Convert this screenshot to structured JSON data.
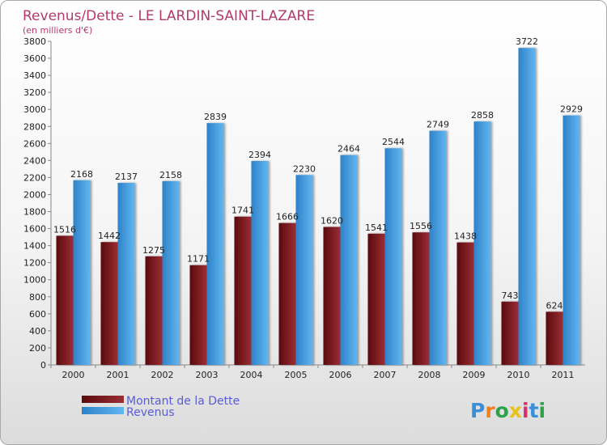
{
  "chart_data": {
    "type": "bar",
    "title": "Revenus/Dette - LE LARDIN-SAINT-LAZARE",
    "subtitle": "(en milliers d'€)",
    "categories": [
      "2000",
      "2001",
      "2002",
      "2003",
      "2004",
      "2005",
      "2006",
      "2007",
      "2008",
      "2009",
      "2010",
      "2011"
    ],
    "series": [
      {
        "name": "Montant de la Dette",
        "color": "#7a1a1e",
        "values": [
          1516,
          1442,
          1275,
          1171,
          1741,
          1666,
          1620,
          1541,
          1556,
          1438,
          743,
          624
        ],
        "labels": [
          "1516",
          "1442",
          "1275",
          "1171",
          "1741",
          "1666",
          "1620",
          "1541",
          "1556",
          "1438",
          "743",
          "624"
        ]
      },
      {
        "name": "Revenus",
        "color": "#4ea6e6",
        "values": [
          2168,
          2137,
          2158,
          2839,
          2394,
          2230,
          2464,
          2544,
          2749,
          2858,
          3722,
          2929
        ],
        "labels": [
          "2168",
          "2137",
          "2158",
          "2839",
          "2394",
          "2230",
          "2464",
          "2544",
          "2749",
          "2858",
          "3722",
          "2929"
        ]
      }
    ],
    "ylim": [
      0,
      3800
    ],
    "yticks": [
      0,
      200,
      400,
      600,
      800,
      1000,
      1200,
      1400,
      1600,
      1800,
      2000,
      2200,
      2400,
      2600,
      2800,
      3000,
      3200,
      3400,
      3600,
      3800
    ],
    "grid": false,
    "legend_position": "bottom-left"
  },
  "logo": {
    "text": "Proxiti",
    "letter_colors": [
      "#3a8fd6",
      "#f07f1e",
      "#2da24a",
      "#e8c21a",
      "#d6336c",
      "#3a8fd6",
      "#2da24a"
    ]
  }
}
